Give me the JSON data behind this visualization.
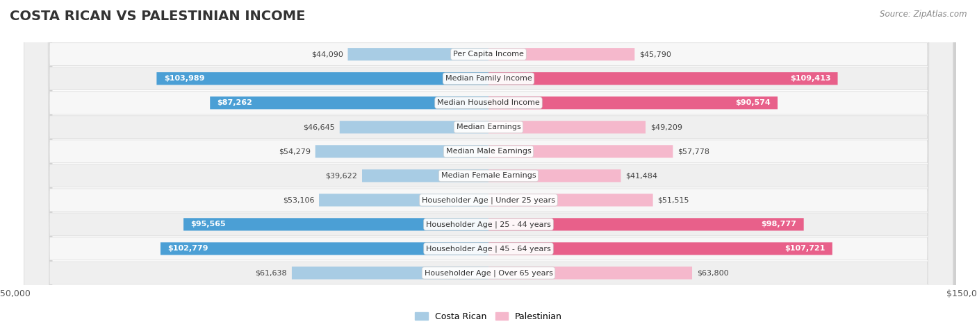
{
  "title": "COSTA RICAN VS PALESTINIAN INCOME",
  "source": "Source: ZipAtlas.com",
  "categories": [
    "Per Capita Income",
    "Median Family Income",
    "Median Household Income",
    "Median Earnings",
    "Median Male Earnings",
    "Median Female Earnings",
    "Householder Age | Under 25 years",
    "Householder Age | 25 - 44 years",
    "Householder Age | 45 - 64 years",
    "Householder Age | Over 65 years"
  ],
  "costa_rican": [
    44090,
    103989,
    87262,
    46645,
    54279,
    39622,
    53106,
    95565,
    102779,
    61638
  ],
  "palestinian": [
    45790,
    109413,
    90574,
    49209,
    57778,
    41484,
    51515,
    98777,
    107721,
    63800
  ],
  "max_val": 150000,
  "cr_light": "#a8cce4",
  "cr_dark": "#4b9fd5",
  "pal_light": "#f5b8cc",
  "pal_dark": "#e8608a",
  "row_bg_light": "#f7f7f7",
  "row_bg_dark": "#efefef",
  "threshold": 0.5,
  "bar_height": 0.52,
  "title_fontsize": 14,
  "source_fontsize": 8.5,
  "value_fontsize": 8,
  "category_fontsize": 8
}
